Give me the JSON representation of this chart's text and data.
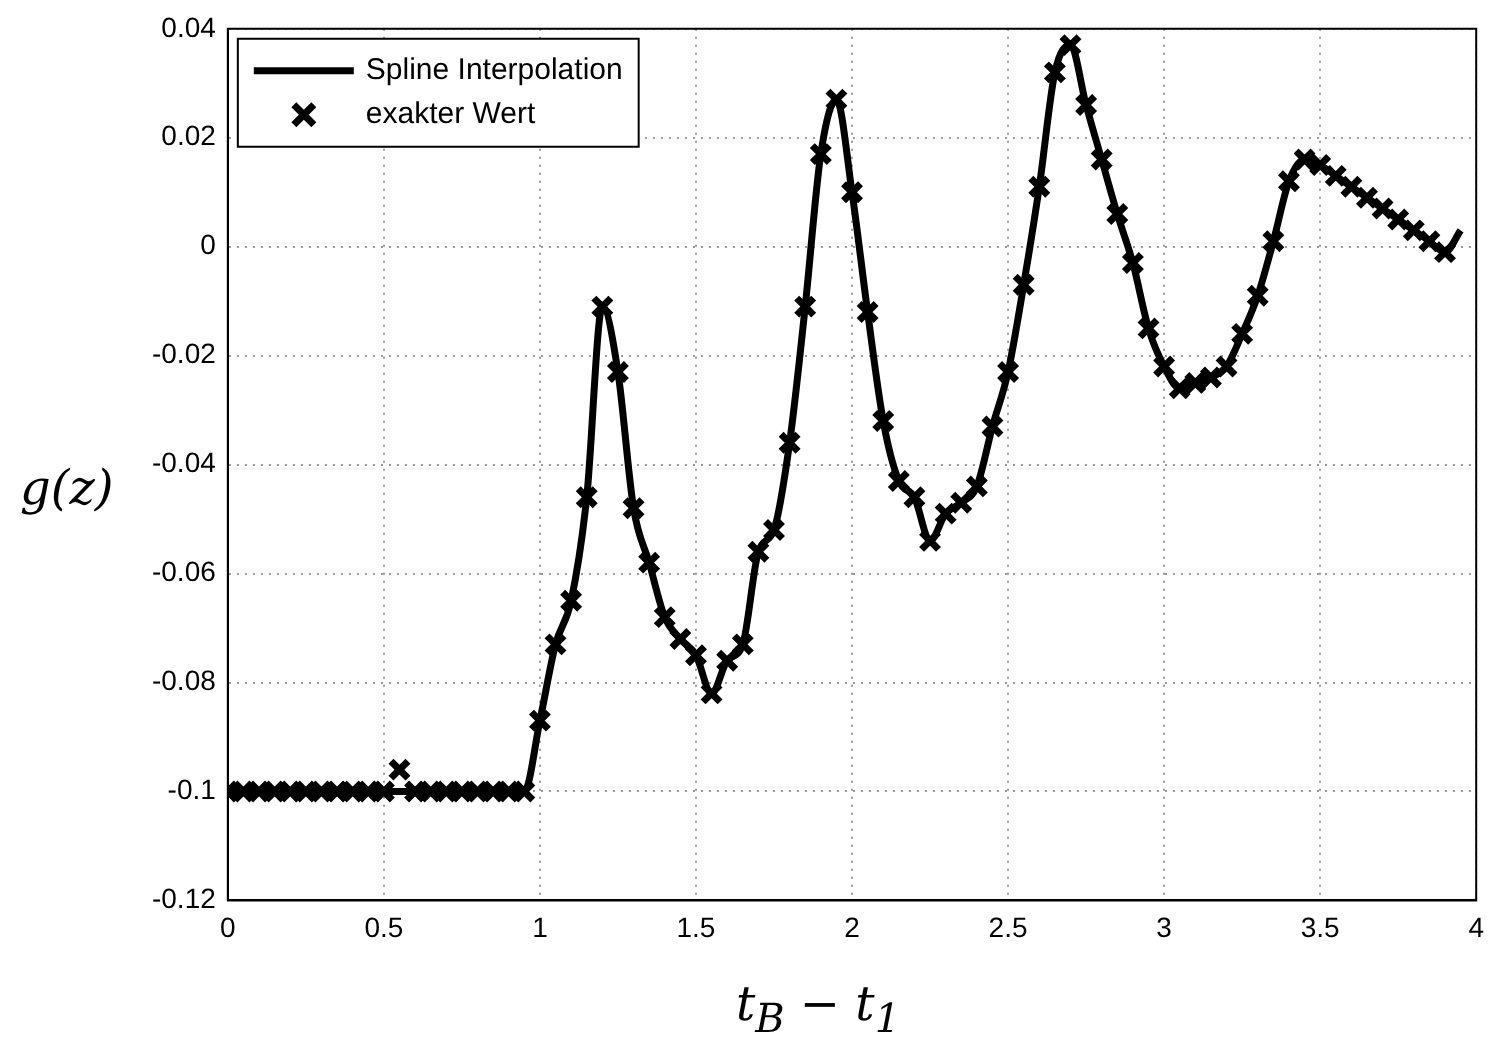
{
  "chart_data": {
    "type": "line",
    "xlabel": "t$_{B}$ − t$_{1}$",
    "ylabel": "g(z)",
    "xlim": [
      0,
      4
    ],
    "xticks": [
      0,
      0.5,
      1,
      1.5,
      2,
      2.5,
      3,
      3.5,
      4
    ],
    "ylim": [
      -0.12,
      0.04
    ],
    "yticks": [
      -0.12,
      -0.1,
      -0.08,
      -0.06,
      -0.04,
      -0.02,
      0,
      0.02,
      0.04
    ],
    "grid": true,
    "legend": "top left",
    "series": [
      {
        "name": "Spline Interpolation",
        "type": "line",
        "color": "#000000",
        "line_style": "solid",
        "x": [
          0,
          0.05,
          0.1,
          0.15,
          0.2,
          0.25,
          0.3,
          0.35,
          0.4,
          0.45,
          0.5,
          0.55,
          0.6,
          0.65,
          0.7,
          0.75,
          0.8,
          0.85,
          0.9,
          0.95,
          1.0,
          1.05,
          1.1,
          1.15,
          1.2,
          1.25,
          1.3,
          1.35,
          1.4,
          1.45,
          1.5,
          1.55,
          1.6,
          1.65,
          1.7,
          1.75,
          1.8,
          1.85,
          1.9,
          1.95,
          2.0,
          2.05,
          2.1,
          2.15,
          2.2,
          2.25,
          2.3,
          2.35,
          2.4,
          2.45,
          2.5,
          2.55,
          2.6,
          2.65,
          2.7,
          2.75,
          2.8,
          2.85,
          2.9,
          2.95,
          3.0,
          3.05,
          3.1,
          3.15,
          3.2,
          3.25,
          3.3,
          3.35,
          3.4,
          3.45,
          3.5,
          3.55,
          3.6,
          3.65,
          3.7,
          3.75,
          3.8,
          3.85,
          3.9,
          3.95
        ],
        "values": [
          -0.1,
          -0.1,
          -0.1,
          -0.1,
          -0.1,
          -0.1,
          -0.1,
          -0.1,
          -0.1,
          -0.1,
          -0.1,
          -0.1,
          -0.1,
          -0.1,
          -0.1,
          -0.1,
          -0.1,
          -0.1,
          -0.1,
          -0.1,
          -0.087,
          -0.073,
          -0.065,
          -0.046,
          -0.011,
          -0.023,
          -0.048,
          -0.058,
          -0.068,
          -0.072,
          -0.075,
          -0.082,
          -0.076,
          -0.073,
          -0.056,
          -0.052,
          -0.036,
          -0.011,
          0.017,
          0.027,
          0.01,
          -0.012,
          -0.032,
          -0.043,
          -0.046,
          -0.054,
          -0.049,
          -0.047,
          -0.044,
          -0.033,
          -0.023,
          -0.007,
          0.011,
          0.032,
          0.037,
          0.026,
          0.016,
          0.006,
          -0.003,
          -0.015,
          -0.022,
          -0.026,
          -0.025,
          -0.024,
          -0.022,
          -0.016,
          -0.009,
          0.001,
          0.012,
          0.016,
          0.015,
          0.013,
          0.011,
          0.009,
          0.007,
          0.005,
          0.003,
          0.001,
          -0.001,
          0.003
        ]
      },
      {
        "name": "exakter Wert",
        "type": "scatter",
        "color": "#000000",
        "marker": "cross",
        "x": [
          0,
          0.05,
          0.1,
          0.15,
          0.2,
          0.25,
          0.3,
          0.35,
          0.4,
          0.45,
          0.5,
          0.55,
          0.6,
          0.65,
          0.7,
          0.75,
          0.8,
          0.85,
          0.9,
          0.95,
          1.0,
          1.05,
          1.1,
          1.15,
          1.2,
          1.25,
          1.3,
          1.35,
          1.4,
          1.45,
          1.5,
          1.55,
          1.6,
          1.65,
          1.7,
          1.75,
          1.8,
          1.85,
          1.9,
          1.95,
          2.0,
          2.05,
          2.1,
          2.15,
          2.2,
          2.25,
          2.3,
          2.35,
          2.4,
          2.45,
          2.5,
          2.55,
          2.6,
          2.65,
          2.7,
          2.75,
          2.8,
          2.85,
          2.9,
          2.95,
          3.0,
          3.05,
          3.1,
          3.15,
          3.2,
          3.25,
          3.3,
          3.35,
          3.4,
          3.45,
          3.5,
          3.55,
          3.6,
          3.65,
          3.7,
          3.75,
          3.8,
          3.85,
          3.9
        ],
        "values": [
          -0.1,
          -0.1,
          -0.1,
          -0.1,
          -0.1,
          -0.1,
          -0.1,
          -0.1,
          -0.1,
          -0.1,
          -0.1,
          -0.096,
          -0.1,
          -0.1,
          -0.1,
          -0.1,
          -0.1,
          -0.1,
          -0.1,
          -0.1,
          -0.087,
          -0.073,
          -0.065,
          -0.046,
          -0.011,
          -0.023,
          -0.048,
          -0.058,
          -0.068,
          -0.072,
          -0.075,
          -0.082,
          -0.076,
          -0.073,
          -0.056,
          -0.052,
          -0.036,
          -0.011,
          0.017,
          0.027,
          0.01,
          -0.012,
          -0.032,
          -0.043,
          -0.046,
          -0.054,
          -0.049,
          -0.047,
          -0.044,
          -0.033,
          -0.023,
          -0.007,
          0.011,
          0.032,
          0.037,
          0.026,
          0.016,
          0.006,
          -0.003,
          -0.015,
          -0.022,
          -0.026,
          -0.025,
          -0.024,
          -0.022,
          -0.016,
          -0.009,
          0.001,
          0.012,
          0.016,
          0.015,
          0.013,
          0.011,
          0.009,
          0.007,
          0.005,
          0.003,
          0.001,
          -0.001
        ]
      }
    ]
  }
}
